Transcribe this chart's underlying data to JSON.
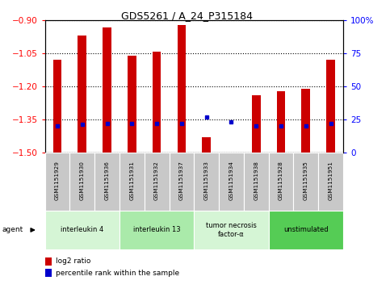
{
  "title": "GDS5261 / A_24_P315184",
  "samples": [
    "GSM1151929",
    "GSM1151930",
    "GSM1151936",
    "GSM1151931",
    "GSM1151932",
    "GSM1151937",
    "GSM1151933",
    "GSM1151934",
    "GSM1151938",
    "GSM1151928",
    "GSM1151935",
    "GSM1151951"
  ],
  "log2_ratio": [
    -1.08,
    -0.97,
    -0.93,
    -1.06,
    -1.04,
    -0.92,
    -1.43,
    -1.5,
    -1.24,
    -1.22,
    -1.21,
    -1.08
  ],
  "percentile_values": [
    0.2,
    0.21,
    0.22,
    0.22,
    0.22,
    0.22,
    0.27,
    0.23,
    0.2,
    0.2,
    0.2,
    0.22
  ],
  "agents": [
    {
      "label": "interleukin 4",
      "indices": [
        0,
        1,
        2
      ],
      "color": "#d5f5d5"
    },
    {
      "label": "interleukin 13",
      "indices": [
        3,
        4,
        5
      ],
      "color": "#aaeaaa"
    },
    {
      "label": "tumor necrosis\nfactor-α",
      "indices": [
        6,
        7,
        8
      ],
      "color": "#d5f5d5"
    },
    {
      "label": "unstimulated",
      "indices": [
        9,
        10,
        11
      ],
      "color": "#55cc55"
    }
  ],
  "ylim_left": [
    -1.5,
    -0.9
  ],
  "ylim_right": [
    0,
    100
  ],
  "yticks_left": [
    -1.5,
    -1.35,
    -1.2,
    -1.05,
    -0.9
  ],
  "yticks_right": [
    0,
    25,
    50,
    75,
    100
  ],
  "ytick_labels_right": [
    "0",
    "25",
    "50",
    "75",
    "100%"
  ],
  "bar_color": "#cc0000",
  "percentile_color": "#0000cc",
  "bar_width": 0.35
}
